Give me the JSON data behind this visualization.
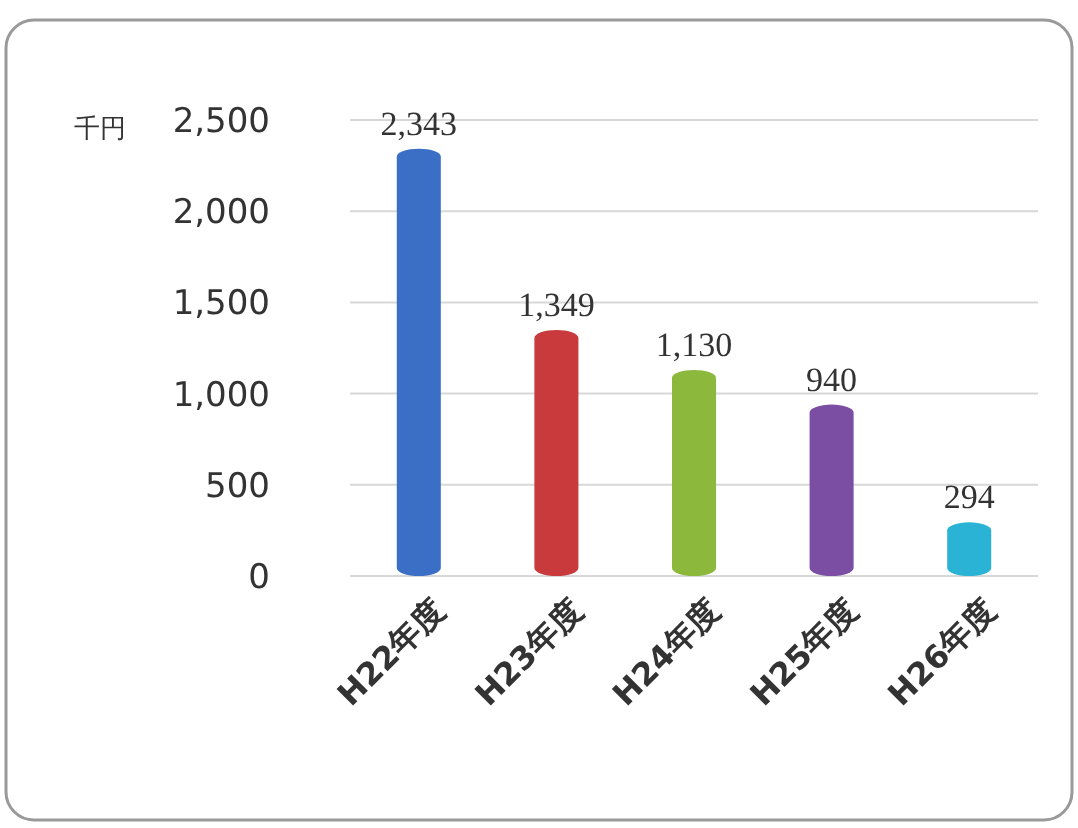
{
  "chart_data": {
    "type": "bar",
    "ylabel": "千円",
    "categories": [
      "H22年度",
      "H23年度",
      "H24年度",
      "H25年度",
      "H26年度"
    ],
    "values": [
      2343,
      1349,
      1130,
      940,
      294
    ],
    "colors": [
      "#3b6fc6",
      "#c83a3c",
      "#8cb83c",
      "#7b4ea3",
      "#2bb3d6"
    ],
    "value_labels": [
      "2,343",
      "1,349",
      "1,130",
      "940",
      "294"
    ],
    "ylim": [
      0,
      2500
    ],
    "yticks": [
      0,
      500,
      {
        "value": 1000,
        "label": "1,000"
      },
      {
        "value": 1500,
        "label": "1,500"
      },
      {
        "value": 2000,
        "label": "2,000"
      },
      {
        "value": 2500,
        "label": "2,500"
      }
    ],
    "grid": true
  }
}
